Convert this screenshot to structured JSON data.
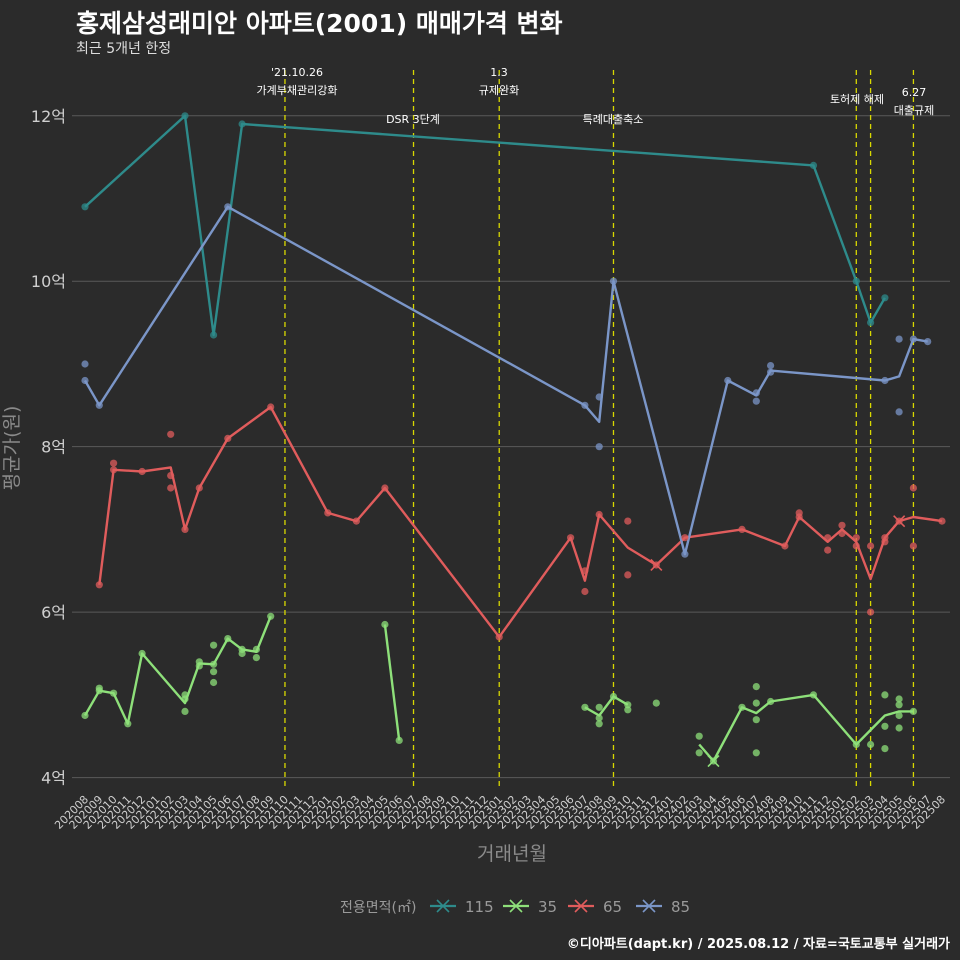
{
  "title": "홍제삼성래미안 아파트(2001) 매매가격 변화",
  "subtitle": "최근 5개년 한정",
  "caption": "©디아파트(dapt.kr) / 2025.08.12 / 자료=국토교통부 실거래가",
  "legend_title": "전용면적(㎡)",
  "chart_data": {
    "type": "line",
    "xlabel": "거래년월",
    "ylabel": "평균가(원)",
    "ylim": [
      3.85,
      12.65
    ],
    "y_ticks": [
      {
        "value": 4,
        "label": "4억"
      },
      {
        "value": 6,
        "label": "6억"
      },
      {
        "value": 8,
        "label": "8억"
      },
      {
        "value": 10,
        "label": "10억"
      },
      {
        "value": 12,
        "label": "12억"
      }
    ],
    "x_categories": [
      "202008",
      "202009",
      "202010",
      "202011",
      "202012",
      "202101",
      "202102",
      "202103",
      "202104",
      "202105",
      "202106",
      "202107",
      "202108",
      "202109",
      "202110",
      "202111",
      "202112",
      "202201",
      "202202",
      "202203",
      "202204",
      "202205",
      "202206",
      "202207",
      "202208",
      "202209",
      "202210",
      "202211",
      "202212",
      "202301",
      "202302",
      "202303",
      "202304",
      "202305",
      "202306",
      "202307",
      "202308",
      "202309",
      "202310",
      "202311",
      "202312",
      "202401",
      "202402",
      "202403",
      "202404",
      "202405",
      "202406",
      "202407",
      "202408",
      "202409",
      "202410",
      "202411",
      "202412",
      "202501",
      "202502",
      "202503",
      "202504",
      "202505",
      "202506",
      "202507",
      "202508"
    ],
    "events": [
      {
        "month": "202110",
        "label": "'21.10.26\n가계부채관리강화"
      },
      {
        "month": "202207",
        "label": "DSR 3단계"
      },
      {
        "month": "202301",
        "label": "1.3\n규제완화"
      },
      {
        "month": "202309",
        "label": "특례대출축소"
      },
      {
        "month": "202502",
        "label": "토허제 해제"
      },
      {
        "month": "202503",
        "label": ""
      },
      {
        "month": "202506",
        "label": "6.27\n대출규제"
      }
    ],
    "series": [
      {
        "name": "115",
        "color": "#2e8b8b",
        "line": [
          [
            "202008",
            10.9
          ],
          [
            "202103",
            12.0
          ],
          [
            "202105",
            9.35
          ],
          [
            "202107",
            11.9
          ],
          [
            "202411",
            11.4
          ],
          [
            "202502",
            10.0
          ],
          [
            "202503",
            9.5
          ],
          [
            "202504",
            9.8
          ]
        ],
        "points": [
          [
            "202008",
            10.9
          ],
          [
            "202103",
            12.0
          ],
          [
            "202105",
            9.35
          ],
          [
            "202107",
            11.9
          ],
          [
            "202411",
            11.4
          ],
          [
            "202502",
            10.0
          ],
          [
            "202503",
            9.5
          ],
          [
            "202504",
            9.8
          ]
        ]
      },
      {
        "name": "35",
        "color": "#8ee07a",
        "line": [
          [
            "202008",
            4.75
          ],
          [
            "202009",
            5.05
          ],
          [
            "202010",
            5.02
          ],
          [
            "202011",
            4.65
          ],
          [
            "202012",
            5.5
          ],
          [
            "202103",
            4.9
          ],
          [
            "202104",
            5.38
          ],
          [
            "202105",
            5.37
          ],
          [
            "202106",
            5.68
          ],
          [
            "202107",
            5.55
          ],
          [
            "202108",
            5.52
          ],
          [
            "202109",
            5.95
          ],
          null,
          [
            "202205",
            5.85
          ],
          [
            "202206",
            4.45
          ],
          null,
          [
            "202307",
            4.85
          ],
          [
            "202308",
            4.75
          ],
          [
            "202309",
            4.98
          ],
          [
            "202310",
            4.88
          ],
          null,
          [
            "202403",
            4.4
          ],
          [
            "202404",
            4.2
          ],
          [
            "202406",
            4.85
          ],
          [
            "202407",
            4.78
          ],
          [
            "202408",
            4.92
          ],
          [
            "202411",
            5.0
          ],
          [
            "202502",
            4.4
          ],
          [
            "202504",
            4.75
          ],
          [
            "202505",
            4.8
          ],
          [
            "202506",
            4.8
          ]
        ],
        "points": [
          [
            "202008",
            4.75
          ],
          [
            "202009",
            5.08
          ],
          [
            "202009",
            5.05
          ],
          [
            "202010",
            5.02
          ],
          [
            "202011",
            4.65
          ],
          [
            "202012",
            5.5
          ],
          [
            "202103",
            4.8
          ],
          [
            "202103",
            4.95
          ],
          [
            "202103",
            5.0
          ],
          [
            "202104",
            5.35
          ],
          [
            "202104",
            5.4
          ],
          [
            "202105",
            5.6
          ],
          [
            "202105",
            5.28
          ],
          [
            "202105",
            5.15
          ],
          [
            "202105",
            5.37
          ],
          [
            "202106",
            5.68
          ],
          [
            "202107",
            5.5
          ],
          [
            "202107",
            5.55
          ],
          [
            "202108",
            5.45
          ],
          [
            "202108",
            5.55
          ],
          [
            "202109",
            5.95
          ],
          [
            "202205",
            5.85
          ],
          [
            "202206",
            4.45
          ],
          [
            "202307",
            4.85
          ],
          [
            "202308",
            4.65
          ],
          [
            "202308",
            4.72
          ],
          [
            "202308",
            4.85
          ],
          [
            "202309",
            4.98
          ],
          [
            "202310",
            4.88
          ],
          [
            "202310",
            4.82
          ],
          [
            "202312",
            4.9
          ],
          [
            "202403",
            4.5
          ],
          [
            "202403",
            4.3
          ],
          [
            "202404",
            4.2
          ],
          [
            "202406",
            4.85
          ],
          [
            "202407",
            4.7
          ],
          [
            "202407",
            4.9
          ],
          [
            "202407",
            5.1
          ],
          [
            "202407",
            4.3
          ],
          [
            "202408",
            4.92
          ],
          [
            "202411",
            5.0
          ],
          [
            "202502",
            4.4
          ],
          [
            "202503",
            4.4
          ],
          [
            "202504",
            4.35
          ],
          [
            "202504",
            4.62
          ],
          [
            "202504",
            5.0
          ],
          [
            "202505",
            4.75
          ],
          [
            "202505",
            4.6
          ],
          [
            "202505",
            4.88
          ],
          [
            "202505",
            4.95
          ],
          [
            "202506",
            4.8
          ]
        ]
      },
      {
        "name": "65",
        "color": "#e05c5c",
        "line": [
          [
            "202009",
            6.33
          ],
          [
            "202010",
            7.72
          ],
          [
            "202012",
            7.7
          ],
          [
            "202102",
            7.75
          ],
          [
            "202103",
            7.0
          ],
          [
            "202104",
            7.5
          ],
          [
            "202106",
            8.1
          ],
          [
            "202109",
            8.48
          ],
          [
            "202201",
            7.2
          ],
          [
            "202203",
            7.1
          ],
          [
            "202205",
            7.5
          ],
          [
            "202301",
            5.7
          ],
          [
            "202306",
            6.9
          ],
          [
            "202307",
            6.38
          ],
          [
            "202308",
            7.18
          ],
          [
            "202310",
            6.78
          ],
          [
            "202312",
            6.57
          ],
          [
            "202402",
            6.9
          ],
          [
            "202406",
            7.0
          ],
          [
            "202409",
            6.8
          ],
          [
            "202410",
            7.15
          ],
          [
            "202412",
            6.85
          ],
          [
            "202501",
            7.0
          ],
          [
            "202502",
            6.85
          ],
          [
            "202503",
            6.4
          ],
          [
            "202504",
            6.9
          ],
          [
            "202505",
            7.1
          ],
          [
            "202506",
            7.15
          ],
          [
            "202508",
            7.1
          ]
        ],
        "points": [
          [
            "202009",
            6.33
          ],
          [
            "202010",
            7.8
          ],
          [
            "202010",
            7.72
          ],
          [
            "202012",
            7.7
          ],
          [
            "202102",
            8.15
          ],
          [
            "202102",
            7.65
          ],
          [
            "202102",
            7.5
          ],
          [
            "202103",
            7.0
          ],
          [
            "202104",
            7.5
          ],
          [
            "202106",
            8.1
          ],
          [
            "202109",
            8.48
          ],
          [
            "202201",
            7.2
          ],
          [
            "202203",
            7.1
          ],
          [
            "202205",
            7.5
          ],
          [
            "202301",
            5.7
          ],
          [
            "202306",
            6.9
          ],
          [
            "202307",
            6.25
          ],
          [
            "202307",
            6.5
          ],
          [
            "202308",
            7.18
          ],
          [
            "202310",
            7.1
          ],
          [
            "202310",
            6.45
          ],
          [
            "202312",
            6.57
          ],
          [
            "202402",
            6.9
          ],
          [
            "202406",
            7.0
          ],
          [
            "202409",
            6.8
          ],
          [
            "202410",
            7.2
          ],
          [
            "202410",
            7.15
          ],
          [
            "202412",
            6.75
          ],
          [
            "202412",
            6.9
          ],
          [
            "202501",
            7.05
          ],
          [
            "202501",
            6.95
          ],
          [
            "202502",
            6.9
          ],
          [
            "202502",
            6.8
          ],
          [
            "202503",
            6.8
          ],
          [
            "202503",
            6.0
          ],
          [
            "202504",
            6.85
          ],
          [
            "202504",
            6.9
          ],
          [
            "202505",
            7.1
          ],
          [
            "202506",
            7.5
          ],
          [
            "202506",
            6.8
          ],
          [
            "202508",
            7.1
          ]
        ]
      },
      {
        "name": "85",
        "color": "#7b96c8",
        "line": [
          [
            "202008",
            8.8
          ],
          [
            "202009",
            8.5
          ],
          [
            "202106",
            10.9
          ],
          [
            "202307",
            8.5
          ],
          [
            "202308",
            8.3
          ],
          [
            "202309",
            10.0
          ],
          [
            "202402",
            6.7
          ],
          [
            "202405",
            8.8
          ],
          [
            "202407",
            8.62
          ],
          [
            "202408",
            8.92
          ],
          [
            "202504",
            8.8
          ],
          [
            "202505",
            8.85
          ],
          [
            "202506",
            9.3
          ],
          [
            "202507",
            9.27
          ]
        ],
        "points": [
          [
            "202008",
            9.0
          ],
          [
            "202008",
            8.8
          ],
          [
            "202009",
            8.5
          ],
          [
            "202106",
            10.9
          ],
          [
            "202307",
            8.5
          ],
          [
            "202308",
            8.6
          ],
          [
            "202308",
            8.0
          ],
          [
            "202309",
            10.0
          ],
          [
            "202402",
            6.7
          ],
          [
            "202405",
            8.8
          ],
          [
            "202407",
            8.55
          ],
          [
            "202407",
            8.65
          ],
          [
            "202408",
            8.98
          ],
          [
            "202408",
            8.9
          ],
          [
            "202504",
            8.8
          ],
          [
            "202505",
            9.3
          ],
          [
            "202505",
            8.42
          ],
          [
            "202506",
            9.3
          ],
          [
            "202507",
            9.27
          ]
        ]
      }
    ],
    "crosses": [
      {
        "series": "35",
        "month": "202404",
        "value": 4.2
      },
      {
        "series": "65",
        "month": "202312",
        "value": 6.57
      },
      {
        "series": "65",
        "month": "202505",
        "value": 7.1
      }
    ],
    "grid": true,
    "legend_position": "bottom"
  }
}
